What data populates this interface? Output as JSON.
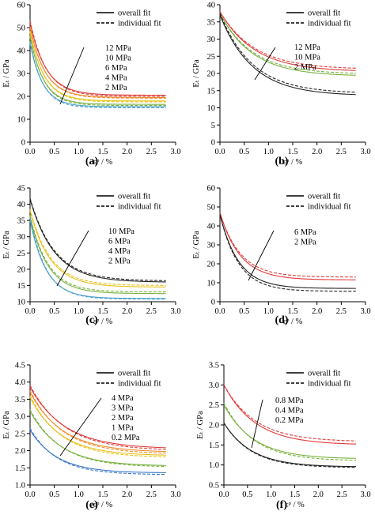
{
  "colors": {
    "black": "#222222",
    "red": "#e03a3a",
    "orange": "#f08a2c",
    "yellow": "#e8c11a",
    "green": "#7ab040",
    "blue": "#3a78c8",
    "cyan": "#4aa0c8",
    "gray": "#909090"
  },
  "chart_data": [
    {
      "type": "line",
      "panel_label": "(a)",
      "xlabel": "εᵖ / %",
      "ylabel": "Eₜ / GPa",
      "xlim": [
        0,
        3
      ],
      "ylim": [
        0,
        60
      ],
      "xticks": [
        0,
        0.5,
        1,
        1.5,
        2,
        2.5,
        3
      ],
      "yticks": [
        0,
        10,
        20,
        30,
        40,
        50,
        60
      ],
      "xtick_labels": [
        "0.0",
        "0.5",
        "1.0",
        "1.5",
        "2.0",
        "2.5",
        "3.0"
      ],
      "ytick_labels": [
        "0",
        "10",
        "20",
        "30",
        "40",
        "50",
        "60"
      ],
      "legend": [
        "overall fit",
        "individual fit"
      ],
      "legend_position": "top-right",
      "annotations": [
        "12 MPa",
        "10 MPa",
        "6 MPa",
        "4 MPa",
        "2 MPa"
      ],
      "series": [
        {
          "color": "red",
          "start": 52,
          "end": 20.5,
          "k": 3.0,
          "dstart": 53,
          "dend": 20,
          "dk": 3.0
        },
        {
          "color": "orange",
          "start": 50,
          "end": 19.5,
          "k": 3.2,
          "dstart": 50.5,
          "dend": 19.2,
          "dk": 3.2
        },
        {
          "color": "yellow",
          "start": 48,
          "end": 18,
          "k": 3.4,
          "dstart": 48.5,
          "dend": 17.6,
          "dk": 3.4
        },
        {
          "color": "green",
          "start": 46,
          "end": 16.5,
          "k": 3.6,
          "dstart": 46.5,
          "dend": 16,
          "dk": 3.6
        },
        {
          "color": "cyan",
          "start": 43,
          "end": 15.5,
          "k": 3.8,
          "dstart": 44,
          "dend": 15,
          "dk": 3.8
        }
      ]
    },
    {
      "type": "line",
      "panel_label": "(b)",
      "xlabel": "εᵖ / %",
      "ylabel": "Eₜ / GPa",
      "xlim": [
        0,
        3
      ],
      "ylim": [
        0,
        40
      ],
      "xticks": [
        0,
        0.5,
        1,
        1.5,
        2,
        2.5,
        3
      ],
      "yticks": [
        0,
        5,
        10,
        15,
        20,
        25,
        30,
        35,
        40
      ],
      "xtick_labels": [
        "0.0",
        "0.5",
        "1.0",
        "1.5",
        "2.0",
        "2.5",
        "3.0"
      ],
      "ytick_labels": [
        "0",
        "5",
        "10",
        "15",
        "20",
        "25",
        "30",
        "35",
        "40"
      ],
      "legend": [
        "overall fit",
        "individual fit"
      ],
      "legend_position": "top-right",
      "annotations": [
        "12 MPa",
        "10 MPa",
        "2 MPa"
      ],
      "series": [
        {
          "color": "red",
          "start": 38,
          "end": 20.5,
          "k": 1.4,
          "dstart": 38,
          "dend": 21.2,
          "dk": 1.4
        },
        {
          "color": "green",
          "start": 37.5,
          "end": 19.2,
          "k": 1.5,
          "dstart": 37.5,
          "dend": 19.8,
          "dk": 1.5
        },
        {
          "color": "black",
          "start": 37,
          "end": 13.5,
          "k": 1.5,
          "dstart": 37.5,
          "dend": 14.2,
          "dk": 1.5
        }
      ]
    },
    {
      "type": "line",
      "panel_label": "(c)",
      "xlabel": "εᵖ / %",
      "ylabel": "Eₜ / GPa",
      "xlim": [
        0,
        3
      ],
      "ylim": [
        10,
        45
      ],
      "xticks": [
        0,
        0.5,
        1,
        1.5,
        2,
        2.5,
        3
      ],
      "yticks": [
        10,
        15,
        20,
        25,
        30,
        35,
        40,
        45
      ],
      "xtick_labels": [
        "0.0",
        "0.5",
        "1.0",
        "1.5",
        "2.0",
        "2.5",
        "3.0"
      ],
      "ytick_labels": [
        "10",
        "15",
        "20",
        "25",
        "30",
        "35",
        "40",
        "45"
      ],
      "legend": [
        "overall fit",
        "individual fit"
      ],
      "legend_position": "top-right",
      "annotations": [
        "10 MPa",
        "6 MPa",
        "4 MPa",
        "2 MPa"
      ],
      "series": [
        {
          "color": "black",
          "start": 41.5,
          "end": 16,
          "k": 2.0,
          "dstart": 41.8,
          "dend": 16.4,
          "dk": 2.0
        },
        {
          "color": "yellow",
          "start": 38,
          "end": 14.5,
          "k": 2.4,
          "dstart": 38.5,
          "dend": 15,
          "dk": 2.4
        },
        {
          "color": "green",
          "start": 36,
          "end": 12.5,
          "k": 2.7,
          "dstart": 36.5,
          "dend": 13,
          "dk": 2.7
        },
        {
          "color": "cyan",
          "start": 35,
          "end": 11,
          "k": 3.0,
          "dstart": 36,
          "dend": 10.8,
          "dk": 3.0
        }
      ]
    },
    {
      "type": "line",
      "panel_label": "(d)",
      "xlabel": "εᵖ / %",
      "ylabel": "Eₜ / GPa",
      "xlim": [
        0,
        3
      ],
      "ylim": [
        0,
        60
      ],
      "xticks": [
        0,
        0.5,
        1,
        1.5,
        2,
        2.5,
        3
      ],
      "yticks": [
        0,
        10,
        20,
        30,
        40,
        50,
        60
      ],
      "xtick_labels": [
        "0.0",
        "0.5",
        "1.0",
        "1.5",
        "2.0",
        "2.5",
        "3.0"
      ],
      "ytick_labels": [
        "0",
        "10",
        "20",
        "30",
        "40",
        "50",
        "60"
      ],
      "legend": [
        "overall fit",
        "individual fit"
      ],
      "legend_position": "top-right",
      "annotations": [
        "6 MPa",
        "2 MPa"
      ],
      "series": [
        {
          "color": "red",
          "start": 47,
          "end": 11.5,
          "k": 2.4,
          "dstart": 47,
          "dend": 13,
          "dk": 2.4
        },
        {
          "color": "black",
          "start": 46,
          "end": 7,
          "k": 2.6,
          "dstart": 46,
          "dend": 5.5,
          "dk": 2.6
        }
      ]
    },
    {
      "type": "line",
      "panel_label": "(e)",
      "xlabel": "εᵖ / %",
      "ylabel": "Eₜ / GPa",
      "xlim": [
        0,
        3
      ],
      "ylim": [
        1,
        4.5
      ],
      "xticks": [
        0,
        0.5,
        1,
        1.5,
        2,
        2.5,
        3
      ],
      "yticks": [
        1,
        1.5,
        2,
        2.5,
        3,
        3.5,
        4,
        4.5
      ],
      "xtick_labels": [
        "0.0",
        "0.5",
        "1.0",
        "1.5",
        "2.0",
        "2.5",
        "3.0"
      ],
      "ytick_labels": [
        "1.0",
        "1.5",
        "2.0",
        "2.5",
        "3.0",
        "3.5",
        "4.0",
        "4.5"
      ],
      "legend": [
        "overall fit",
        "individual fit"
      ],
      "legend_position": "top-right",
      "annotations": [
        "4 MPa",
        "3 MPa",
        "2 MPa",
        "1 MPa",
        "0.2 MPa"
      ],
      "series": [
        {
          "color": "red",
          "start": 3.85,
          "end": 2.05,
          "k": 1.4,
          "dstart": 3.9,
          "dend": 2.0,
          "dk": 1.4
        },
        {
          "color": "orange",
          "start": 3.7,
          "end": 1.95,
          "k": 1.5,
          "dstart": 3.75,
          "dend": 1.9,
          "dk": 1.5
        },
        {
          "color": "yellow",
          "start": 3.55,
          "end": 1.85,
          "k": 1.6,
          "dstart": 3.6,
          "dend": 1.8,
          "dk": 1.6
        },
        {
          "color": "green",
          "start": 3.15,
          "end": 1.55,
          "k": 1.6,
          "dstart": 3.2,
          "dend": 1.52,
          "dk": 1.6
        },
        {
          "color": "blue",
          "start": 2.6,
          "end": 1.35,
          "k": 1.8,
          "dstart": 2.65,
          "dend": 1.3,
          "dk": 1.8
        }
      ]
    },
    {
      "type": "line",
      "panel_label": "(f)",
      "xlabel": "εᵖ / %",
      "ylabel": "Eₜ / GPa",
      "xlim": [
        0,
        3
      ],
      "ylim": [
        0.5,
        3.5
      ],
      "xticks": [
        0,
        0.5,
        1,
        1.5,
        2,
        2.5,
        3
      ],
      "yticks": [
        0.5,
        1,
        1.5,
        2,
        2.5,
        3,
        3.5
      ],
      "xtick_labels": [
        "0.0",
        "0.5",
        "1.0",
        "1.5",
        "2.0",
        "2.5",
        "3.0"
      ],
      "ytick_labels": [
        "0.5",
        "1.0",
        "1.5",
        "2.0",
        "2.5",
        "3.0",
        "3.5"
      ],
      "legend": [
        "overall fit",
        "individual fit"
      ],
      "legend_position": "top-right",
      "annotations": [
        "0.8 MPa",
        "0.4 MPa",
        "0.2 MPa"
      ],
      "series": [
        {
          "color": "red",
          "start": 3.0,
          "end": 1.5,
          "k": 1.5,
          "dstart": 3.0,
          "dend": 1.58,
          "dk": 1.5
        },
        {
          "color": "green",
          "start": 2.5,
          "end": 1.15,
          "k": 1.6,
          "dstart": 2.55,
          "dend": 1.1,
          "dk": 1.6
        },
        {
          "color": "black",
          "start": 2.05,
          "end": 0.95,
          "k": 1.7,
          "dstart": 2.05,
          "dend": 0.93,
          "dk": 1.7
        }
      ]
    }
  ]
}
